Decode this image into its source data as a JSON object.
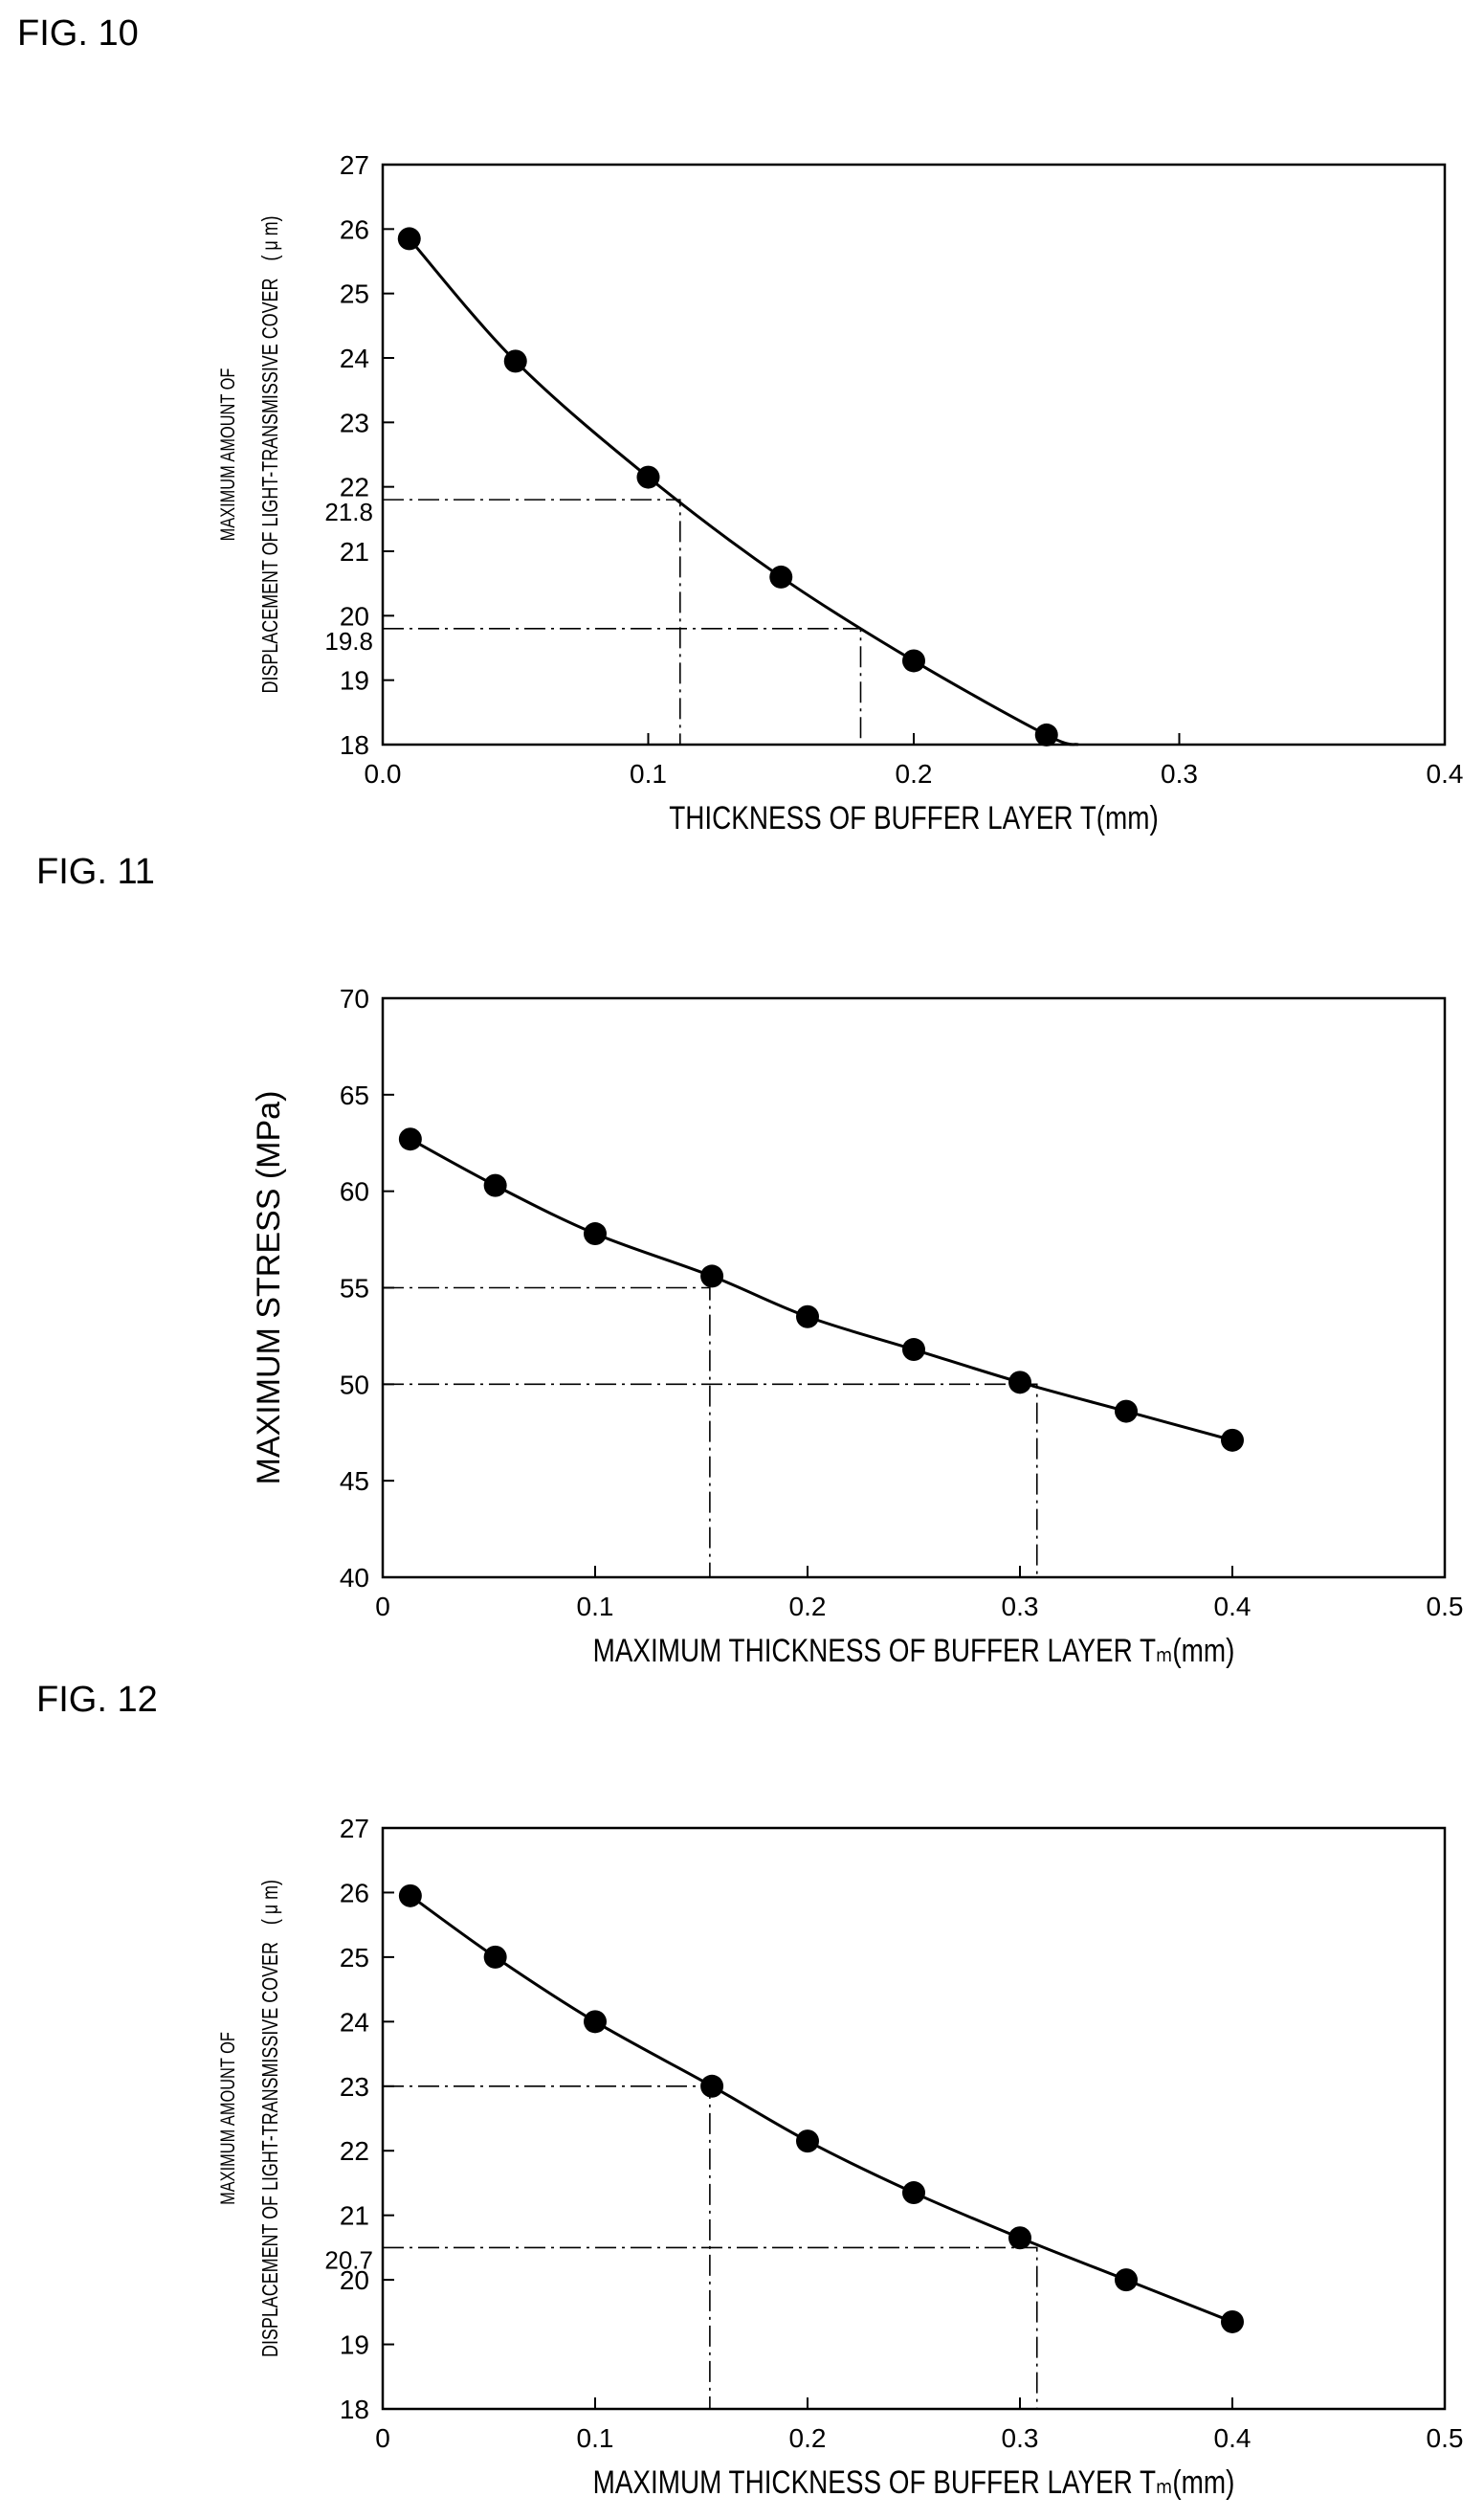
{
  "chart_data": [
    {
      "figure_label": "FIG. 10",
      "type": "line",
      "xlabel": "THICKNESS OF BUFFER LAYER  T(mm)",
      "ylabel_lines": [
        "MAXIMUM AMOUNT OF",
        "DISPLACEMENT OF LIGHT-TRANSMISSIVE COVER　( μ m)"
      ],
      "xlim": [
        0,
        0.4
      ],
      "ylim": [
        18,
        27
      ],
      "xticks": [
        "0.0",
        "0.1",
        "0.2",
        "0.3",
        "0.4"
      ],
      "xtick_values": [
        0,
        0.1,
        0.2,
        0.3,
        0.4
      ],
      "yticks": [
        "18",
        "19",
        "20",
        "21",
        "22",
        "23",
        "24",
        "25",
        "26",
        "27"
      ],
      "ytick_values": [
        18,
        19,
        20,
        21,
        22,
        23,
        24,
        25,
        26,
        27
      ],
      "series": [
        {
          "x": [
            0.01,
            0.05,
            0.1,
            0.15,
            0.2,
            0.25
          ],
          "y": [
            25.85,
            23.95,
            22.15,
            20.6,
            19.3,
            18.15
          ],
          "curve_end": [
            0.262,
            18.0
          ]
        }
      ],
      "reference_lines": [
        {
          "y": 21.8,
          "x": 0.112,
          "label": "21.8"
        },
        {
          "y": 19.8,
          "x": 0.18,
          "label": "19.8"
        }
      ]
    },
    {
      "figure_label": "FIG. 11",
      "type": "line",
      "xlabel": "MAXIMUM THICKNESS OF BUFFER LAYER  Tₘ(mm)",
      "ylabel": "MAXIMUM STRESS  (MPa)",
      "xlim": [
        0,
        0.5
      ],
      "ylim": [
        40,
        70
      ],
      "xticks": [
        "0",
        "0.1",
        "0.2",
        "0.3",
        "0.4",
        "0.5"
      ],
      "xtick_values": [
        0,
        0.1,
        0.2,
        0.3,
        0.4,
        0.5
      ],
      "yticks": [
        "40",
        "45",
        "50",
        "55",
        "60",
        "65",
        "70"
      ],
      "ytick_values": [
        40,
        45,
        50,
        55,
        60,
        65,
        70
      ],
      "series": [
        {
          "x": [
            0.013,
            0.053,
            0.1,
            0.155,
            0.2,
            0.25,
            0.3,
            0.35,
            0.4
          ],
          "y": [
            62.7,
            60.3,
            57.8,
            55.6,
            53.5,
            51.8,
            50.1,
            48.6,
            47.1
          ]
        }
      ],
      "reference_lines": [
        {
          "y": 55,
          "x": 0.154,
          "label": ""
        },
        {
          "y": 50,
          "x": 0.308,
          "label": ""
        }
      ]
    },
    {
      "figure_label": "FIG. 12",
      "type": "line",
      "xlabel": "MAXIMUM THICKNESS OF BUFFER LAYER  Tₘ(mm)",
      "ylabel_lines": [
        "MAXIMUM AMOUNT OF",
        "DISPLACEMENT OF LIGHT-TRANSMISSIVE COVER　( μ m)"
      ],
      "xlim": [
        0,
        0.5
      ],
      "ylim": [
        18,
        27
      ],
      "xticks": [
        "0",
        "0.1",
        "0.2",
        "0.3",
        "0.4",
        "0.5"
      ],
      "xtick_values": [
        0,
        0.1,
        0.2,
        0.3,
        0.4,
        0.5
      ],
      "yticks": [
        "18",
        "19",
        "20",
        "21",
        "22",
        "23",
        "24",
        "25",
        "26",
        "27"
      ],
      "ytick_values": [
        18,
        19,
        20,
        21,
        22,
        23,
        24,
        25,
        26,
        27
      ],
      "series": [
        {
          "x": [
            0.013,
            0.053,
            0.1,
            0.155,
            0.2,
            0.25,
            0.3,
            0.35,
            0.4
          ],
          "y": [
            25.95,
            25.0,
            24.0,
            23.0,
            22.15,
            21.35,
            20.65,
            20.0,
            19.35
          ]
        }
      ],
      "reference_lines": [
        {
          "y": 23,
          "x": 0.154,
          "label": ""
        },
        {
          "y": 20.5,
          "x": 0.308,
          "label": "20.7"
        }
      ]
    }
  ]
}
